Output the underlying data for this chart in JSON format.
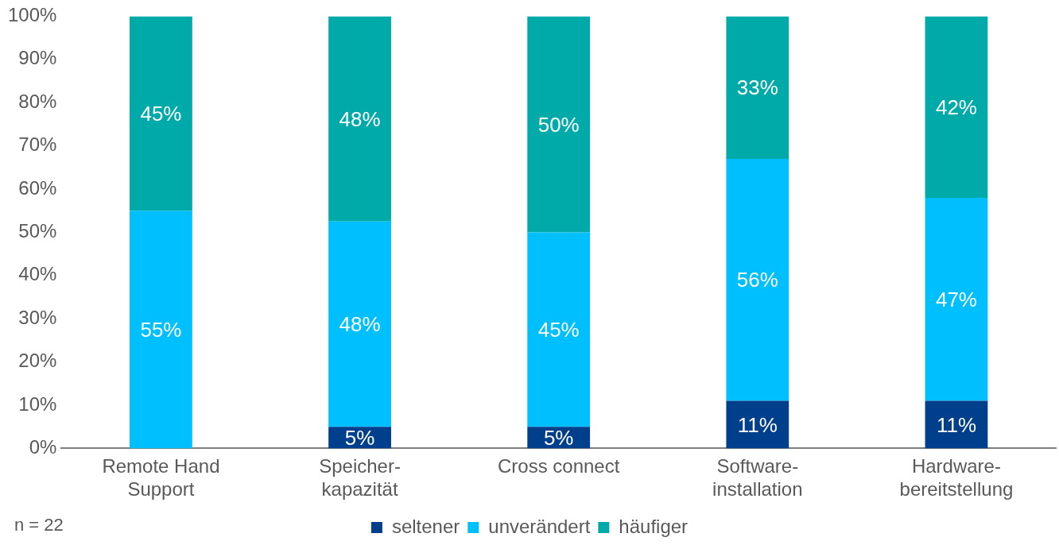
{
  "chart_data": {
    "type": "bar",
    "stacked": true,
    "categories": [
      "Remote Hand Support",
      "Speicher-kapazität",
      "Cross connect",
      "Software-installation",
      "Hardware-bereitstellung"
    ],
    "series": [
      {
        "name": "seltener",
        "color": "#003f8c",
        "values": [
          0,
          5,
          5,
          11,
          11
        ],
        "value_labels": [
          null,
          "5%",
          "5%",
          "11%",
          "11%"
        ]
      },
      {
        "name": "unverändert",
        "color": "#00bfff",
        "values": [
          55,
          47.5,
          45,
          56,
          47
        ],
        "value_labels": [
          "55%",
          "48%",
          "45%",
          "56%",
          "47%"
        ]
      },
      {
        "name": "häufiger",
        "color": "#00aaa8",
        "values": [
          45,
          47.5,
          50,
          33,
          42
        ],
        "value_labels": [
          "45%",
          "48%",
          "50%",
          "33%",
          "42%"
        ]
      }
    ],
    "ylim": [
      0,
      100
    ],
    "yticks": [
      {
        "value": 0,
        "label": "0%"
      },
      {
        "value": 10,
        "label": "10%"
      },
      {
        "value": 20,
        "label": "20%"
      },
      {
        "value": 30,
        "label": "30%"
      },
      {
        "value": 40,
        "label": "40%"
      },
      {
        "value": 50,
        "label": "50%"
      },
      {
        "value": 60,
        "label": "60%"
      },
      {
        "value": 70,
        "label": "70%"
      },
      {
        "value": 80,
        "label": "80%"
      },
      {
        "value": 90,
        "label": "90%"
      },
      {
        "value": 100,
        "label": "100%"
      }
    ],
    "grid": false,
    "legend": "bottom",
    "annotations": [
      "n = 22"
    ]
  }
}
